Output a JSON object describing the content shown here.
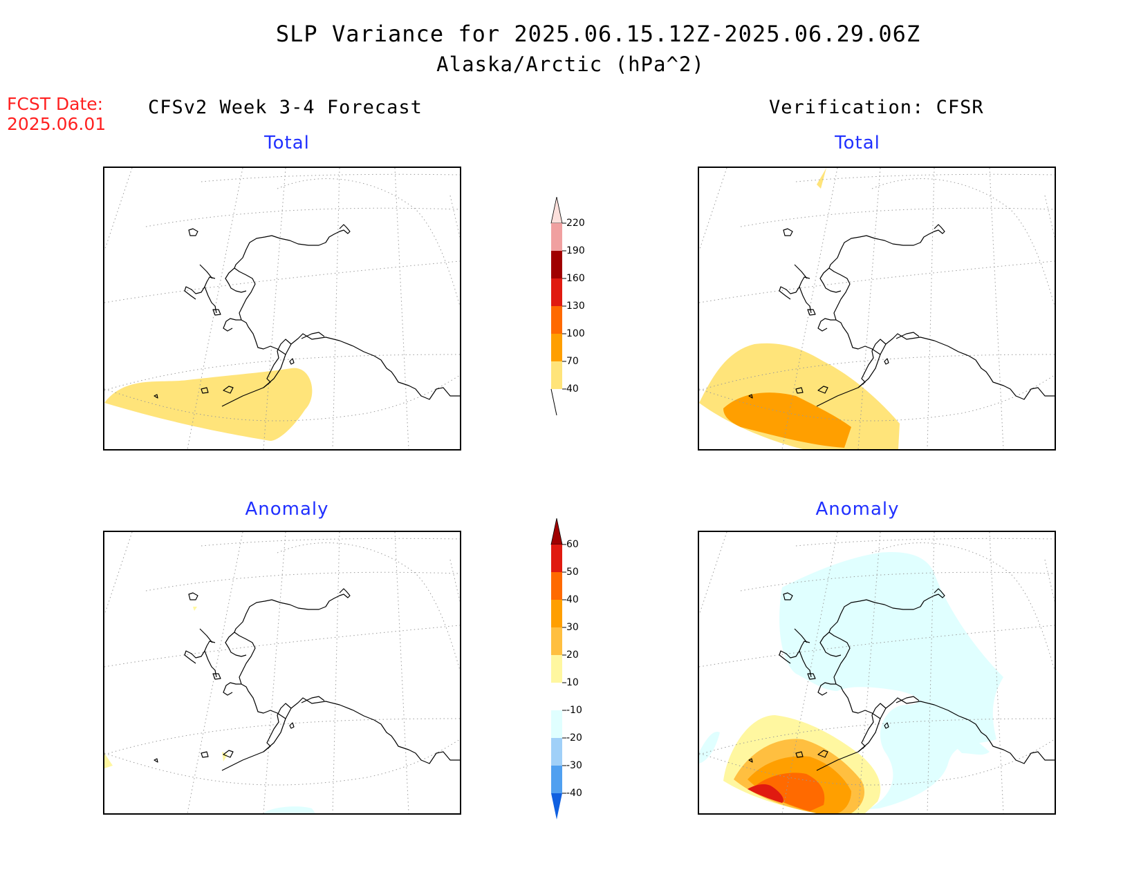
{
  "header": {
    "title": "SLP Variance for 2025.06.15.12Z-2025.06.29.06Z",
    "subtitle": "Alaska/Arctic (hPa^2)",
    "fcst_label": "FCST Date:",
    "fcst_date": "2025.06.01"
  },
  "columns": {
    "left": "CFSv2 Week 3-4 Forecast",
    "right": "Verification: CFSR"
  },
  "panels": {
    "top_left_title": "Total",
    "top_right_title": "Total",
    "bottom_left_title": "Anomaly",
    "bottom_right_title": "Anomaly"
  },
  "colorbars": {
    "total": {
      "labels": [
        "220",
        "190",
        "160",
        "130",
        "100",
        "70",
        "40"
      ],
      "colors": [
        "#fde0dc",
        "#f0a0a0",
        "#a00000",
        "#e01a10",
        "#ff6a00",
        "#ff9f00",
        "#ffe47a"
      ]
    },
    "anomaly": {
      "labels": [
        "60",
        "50",
        "40",
        "30",
        "20",
        "10",
        "-10",
        "-20",
        "-30",
        "-40"
      ],
      "colors": [
        "#a00000",
        "#e01a10",
        "#ff6a00",
        "#ff9f00",
        "#ffbf40",
        "#fff7a0",
        "#ffffff",
        "#e0ffff",
        "#a0d0f8",
        "#50a0f0",
        "#1060e0"
      ]
    }
  }
}
